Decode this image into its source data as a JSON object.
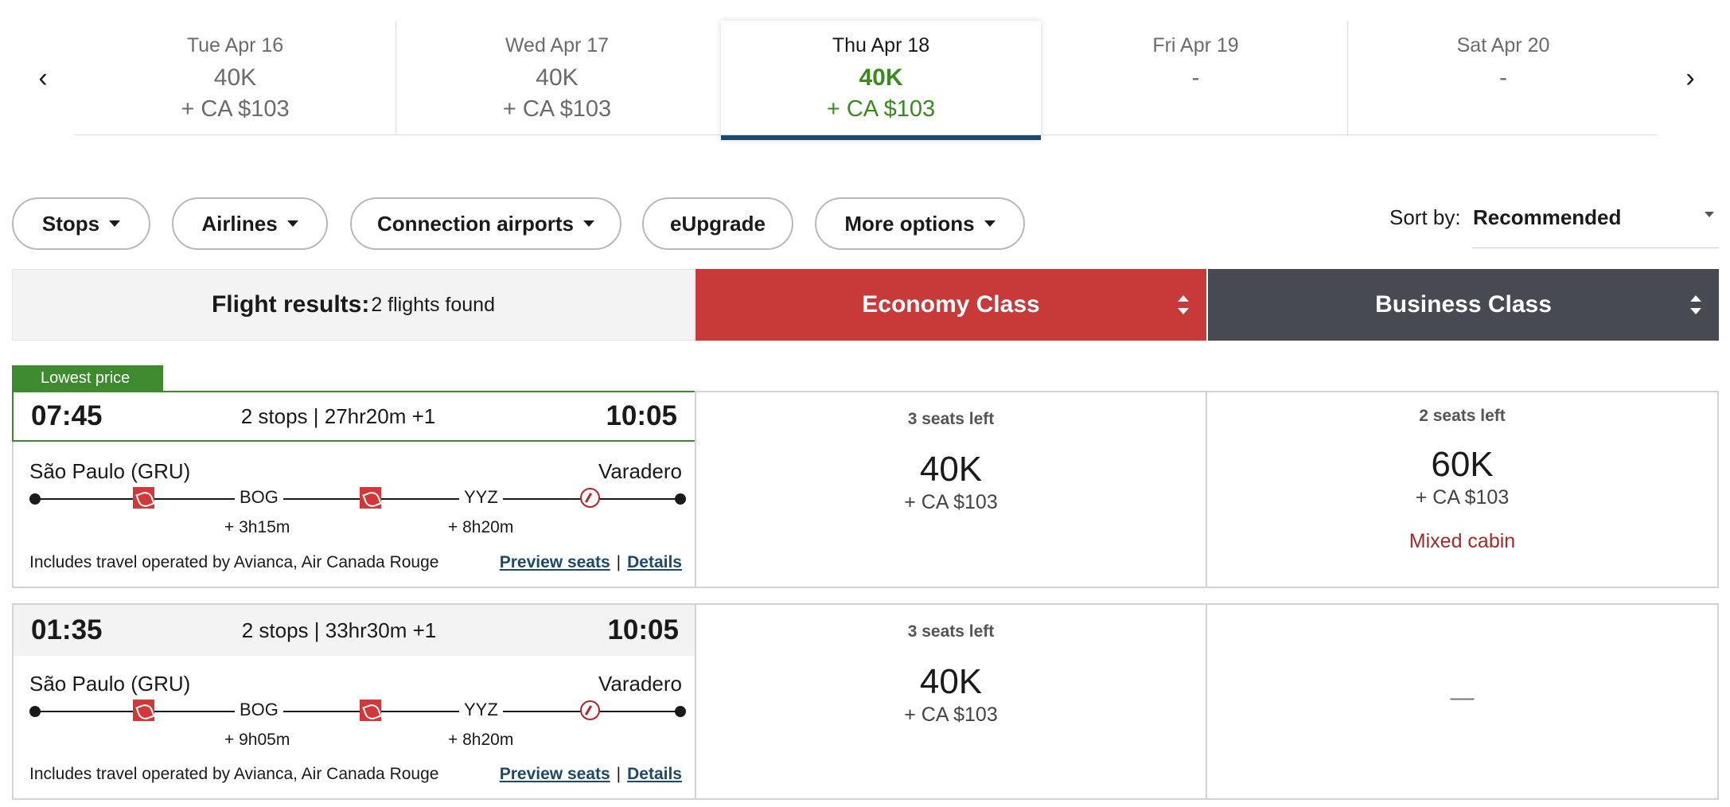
{
  "date_strip": {
    "prev_icon": "chevron-left-icon",
    "next_icon": "chevron-right-icon",
    "prev_glyph": "‹",
    "next_glyph": "›",
    "dates": [
      {
        "label": "Tue Apr 16",
        "points": "40K",
        "cash": "+ CA $103"
      },
      {
        "label": "Wed Apr 17",
        "points": "40K",
        "cash": "+ CA $103"
      },
      {
        "label": "Thu Apr 18",
        "points": "40K",
        "cash": "+ CA $103",
        "selected": true
      },
      {
        "label": "Fri Apr 19",
        "points": "-",
        "cash": ""
      },
      {
        "label": "Sat Apr 20",
        "points": "-",
        "cash": ""
      }
    ]
  },
  "filters": {
    "stops": "Stops",
    "airlines": "Airlines",
    "connection_airports": "Connection airports",
    "eupgrade": "eUpgrade",
    "more_options": "More options"
  },
  "sort": {
    "label": "Sort by:",
    "value": "Recommended"
  },
  "results": {
    "title": "Flight results:",
    "count": "2 flights found",
    "economy_header": "Economy Class",
    "business_header": "Business Class"
  },
  "colors": {
    "economy": "#c8393a",
    "business": "#474b51",
    "selected_price": "#3a8a1f",
    "lowest_tag": "#3e8a2e",
    "link": "#1d4a6a"
  },
  "flights": [
    {
      "tag": "Lowest price",
      "departure": "07:45",
      "stops_duration": "2 stops | 27hr20m +1",
      "arrival": "10:05",
      "origin": "São Paulo (GRU)",
      "destination": "Varadero",
      "stop1": "BOG",
      "layover1": "+ 3h15m",
      "stop2": "YYZ",
      "layover2": "+ 8h20m",
      "operated": "Includes travel operated by Avianca, Air Canada Rouge",
      "preview_seats": "Preview seats",
      "divider": "|",
      "details": "Details",
      "economy": {
        "seats": "3 seats left",
        "points": "40K",
        "cash": "+ CA $103"
      },
      "business": {
        "seats": "2 seats left",
        "points": "60K",
        "cash": "+ CA $103",
        "note": "Mixed cabin"
      }
    },
    {
      "departure": "01:35",
      "stops_duration": "2 stops | 33hr30m +1",
      "arrival": "10:05",
      "origin": "São Paulo (GRU)",
      "destination": "Varadero",
      "stop1": "BOG",
      "layover1": "+ 9h05m",
      "stop2": "YYZ",
      "layover2": "+ 8h20m",
      "operated": "Includes travel operated by Avianca, Air Canada Rouge",
      "preview_seats": "Preview seats",
      "divider": "|",
      "details": "Details",
      "economy": {
        "seats": "3 seats left",
        "points": "40K",
        "cash": "+ CA $103"
      },
      "business": {
        "unavailable": "—"
      }
    }
  ]
}
